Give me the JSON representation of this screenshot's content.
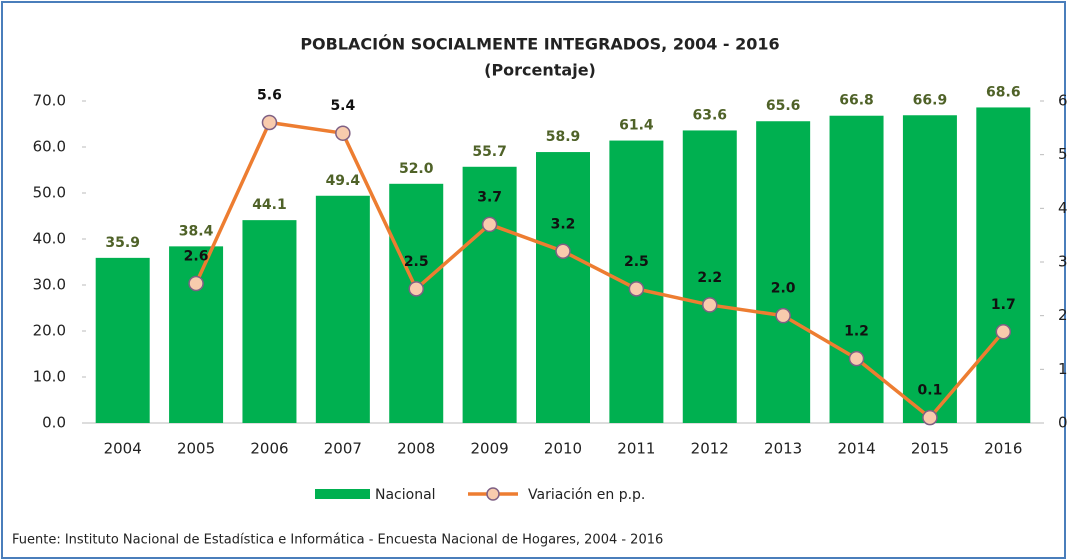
{
  "chart_data": {
    "type": "bar",
    "title": "POBLACIÓN SOCIALMENTE INTEGRADOS, 2004 - 2016",
    "subtitle": "(Porcentaje)",
    "categories": [
      "2004",
      "2005",
      "2006",
      "2007",
      "2008",
      "2009",
      "2010",
      "2011",
      "2012",
      "2013",
      "2014",
      "2015",
      "2016"
    ],
    "series": [
      {
        "name": "Nacional",
        "type": "bar",
        "color": "#00b050",
        "values": [
          35.9,
          38.4,
          44.1,
          49.4,
          52.0,
          55.7,
          58.9,
          61.4,
          63.6,
          65.6,
          66.8,
          66.9,
          68.6
        ],
        "value_labels": [
          "35.9",
          "38.4",
          "44.1",
          "49.4",
          "52.0",
          "55.7",
          "58.9",
          "61.4",
          "63.6",
          "65.6",
          "66.8",
          "66.9",
          "68.6"
        ]
      },
      {
        "name": "Variación en p.p.",
        "type": "line",
        "axis": "y2",
        "color": "#ed7d31",
        "values": [
          null,
          2.6,
          5.6,
          5.4,
          2.5,
          3.7,
          3.2,
          2.5,
          2.2,
          2.0,
          1.2,
          0.1,
          1.7
        ],
        "value_labels": [
          null,
          "2.6",
          "5.6",
          "5.4",
          "2.5",
          "3.7",
          "3.2",
          "2.5",
          "2.2",
          "2.0",
          "1.2",
          "0.1",
          "1.7"
        ]
      }
    ],
    "ylim": [
      0,
      70
    ],
    "yticks": [
      {
        "value": 0,
        "label": "0.0"
      },
      {
        "value": 10,
        "label": "10.0"
      },
      {
        "value": 20,
        "label": "20.0"
      },
      {
        "value": 30,
        "label": "30.0"
      },
      {
        "value": 40,
        "label": "40.0"
      },
      {
        "value": 50,
        "label": "50.0"
      },
      {
        "value": 60,
        "label": "60.0"
      },
      {
        "value": 70,
        "label": "70.0"
      }
    ],
    "y2lim": [
      0,
      6
    ],
    "y2ticks": [
      0,
      1,
      2,
      3,
      4,
      5,
      6
    ],
    "legend": "bottom",
    "source": "Fuente: Instituto Nacional de Estadística e Informática - Encuesta Nacional de Hogares, 2004 - 2016"
  }
}
